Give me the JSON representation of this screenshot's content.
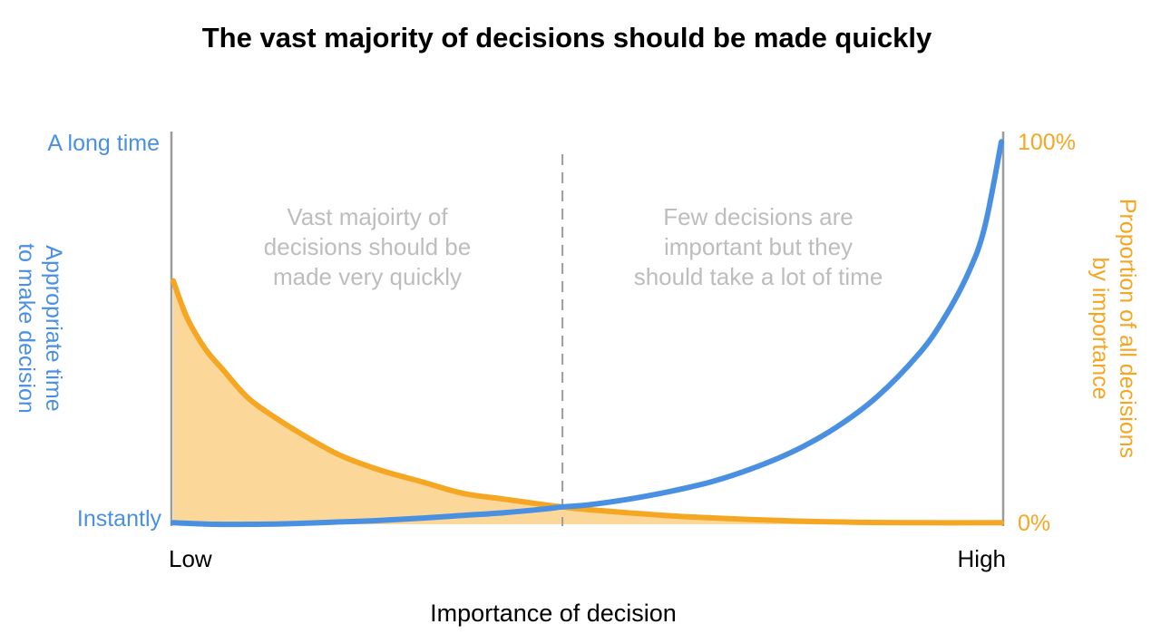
{
  "chart_data": {
    "type": "line",
    "title": "The vast majority of decisions should be made quickly",
    "xlabel": "Importance of decision",
    "x_tick_labels": [
      "Low",
      "High"
    ],
    "y_left": {
      "label": "Appropriate time to make decision",
      "label_lines": [
        "Appropriate time",
        "to make decision"
      ],
      "tick_labels": [
        "Instantly",
        "A long time"
      ]
    },
    "y_right": {
      "label": "Proportion of all decisions by importance",
      "label_lines": [
        "Proportion of all decisions",
        "by importance"
      ],
      "tick_labels": [
        "0%",
        "100%"
      ]
    },
    "annotations": [
      {
        "lines": [
          "Vast majoirty of",
          "decisions should be",
          "made very quickly"
        ]
      },
      {
        "lines": [
          "Few decisions are",
          "important but they",
          "should take a lot of time"
        ]
      }
    ],
    "divider_x": 0.47,
    "series": [
      {
        "axis": "left",
        "color": "#4a90e2",
        "x": [
          0.0,
          0.05,
          0.1,
          0.15,
          0.2,
          0.25,
          0.3,
          0.35,
          0.4,
          0.45,
          0.47,
          0.5,
          0.55,
          0.6,
          0.65,
          0.7,
          0.75,
          0.8,
          0.85,
          0.9,
          0.93,
          0.96,
          0.98,
          1.0
        ],
        "y": [
          0.004,
          0.0,
          0.0,
          0.002,
          0.006,
          0.01,
          0.016,
          0.023,
          0.03,
          0.04,
          0.045,
          0.05,
          0.065,
          0.085,
          0.11,
          0.145,
          0.19,
          0.25,
          0.33,
          0.44,
          0.53,
          0.65,
          0.77,
          0.99
        ]
      },
      {
        "axis": "right",
        "color": "#f5a623",
        "fill": "#fbd89a",
        "x": [
          0.0,
          0.01,
          0.02,
          0.04,
          0.06,
          0.08,
          0.1,
          0.15,
          0.2,
          0.25,
          0.3,
          0.35,
          0.4,
          0.45,
          0.47,
          0.5,
          0.6,
          0.7,
          0.8,
          0.9,
          1.0
        ],
        "y": [
          0.63,
          0.57,
          0.52,
          0.45,
          0.4,
          0.35,
          0.31,
          0.24,
          0.18,
          0.14,
          0.11,
          0.08,
          0.065,
          0.05,
          0.045,
          0.038,
          0.022,
          0.012,
          0.006,
          0.004,
          0.004
        ]
      }
    ]
  }
}
